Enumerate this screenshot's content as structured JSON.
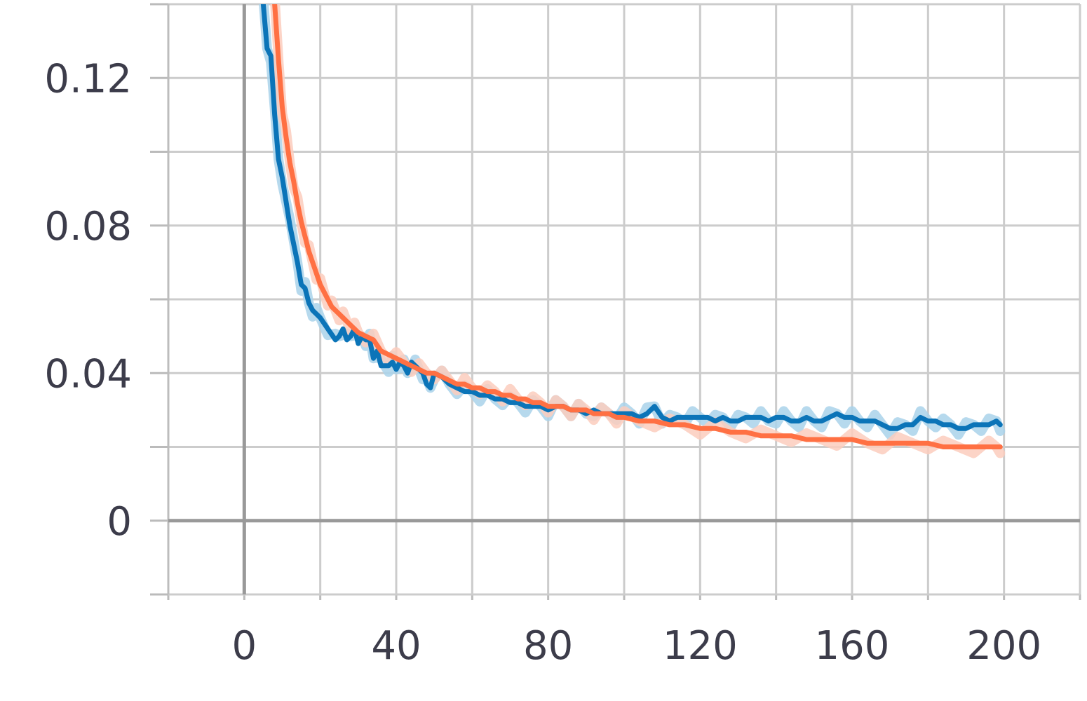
{
  "chart_data": {
    "type": "line",
    "title": "",
    "xlabel": "",
    "ylabel": "",
    "xlim": [
      -20,
      220
    ],
    "ylim": [
      -0.02,
      0.14
    ],
    "x_ticks": [
      0,
      40,
      80,
      120,
      160,
      200
    ],
    "x_tick_labels": [
      "0",
      "40",
      "80",
      "120",
      "160",
      "200"
    ],
    "y_ticks": [
      0,
      0.04,
      0.08,
      0.12
    ],
    "y_tick_labels": [
      "0",
      "0.04",
      "0.08",
      "0.12"
    ],
    "grid": true,
    "legend": "none",
    "series": [
      {
        "color": "#0b74b8",
        "raw_color": "#a9d2ea",
        "x": [
          5,
          6,
          7,
          8,
          9,
          10,
          12,
          14,
          15,
          16,
          17,
          18,
          19,
          20,
          22,
          24,
          25,
          26,
          27,
          28,
          29,
          30,
          31,
          32,
          33,
          34,
          35,
          36,
          37,
          38,
          39,
          40,
          41,
          42,
          43,
          44,
          45,
          46,
          47,
          48,
          49,
          50,
          52,
          54,
          56,
          58,
          60,
          62,
          64,
          66,
          68,
          70,
          72,
          74,
          76,
          78,
          80,
          82,
          84,
          86,
          88,
          90,
          92,
          94,
          96,
          98,
          100,
          102,
          104,
          106,
          108,
          110,
          112,
          114,
          116,
          118,
          120,
          122,
          124,
          126,
          128,
          130,
          132,
          134,
          136,
          138,
          140,
          142,
          144,
          146,
          148,
          150,
          152,
          154,
          156,
          158,
          160,
          162,
          164,
          166,
          168,
          170,
          172,
          174,
          176,
          178,
          180,
          182,
          184,
          186,
          188,
          190,
          192,
          194,
          196,
          198,
          199
        ],
        "y": [
          0.14,
          0.128,
          0.126,
          0.11,
          0.098,
          0.093,
          0.08,
          0.07,
          0.064,
          0.063,
          0.059,
          0.057,
          0.056,
          0.055,
          0.052,
          0.049,
          0.05,
          0.052,
          0.049,
          0.05,
          0.052,
          0.048,
          0.05,
          0.049,
          0.049,
          0.044,
          0.046,
          0.042,
          0.042,
          0.042,
          0.043,
          0.041,
          0.043,
          0.042,
          0.04,
          0.043,
          0.042,
          0.041,
          0.04,
          0.037,
          0.036,
          0.04,
          0.039,
          0.037,
          0.036,
          0.035,
          0.035,
          0.034,
          0.034,
          0.033,
          0.033,
          0.032,
          0.032,
          0.031,
          0.031,
          0.031,
          0.03,
          0.031,
          0.031,
          0.03,
          0.03,
          0.029,
          0.03,
          0.029,
          0.029,
          0.029,
          0.029,
          0.029,
          0.028,
          0.029,
          0.031,
          0.028,
          0.027,
          0.028,
          0.028,
          0.028,
          0.028,
          0.028,
          0.027,
          0.028,
          0.027,
          0.027,
          0.028,
          0.028,
          0.028,
          0.027,
          0.028,
          0.028,
          0.027,
          0.027,
          0.028,
          0.027,
          0.027,
          0.028,
          0.029,
          0.028,
          0.028,
          0.027,
          0.027,
          0.027,
          0.026,
          0.025,
          0.025,
          0.026,
          0.026,
          0.028,
          0.027,
          0.027,
          0.026,
          0.026,
          0.025,
          0.025,
          0.026,
          0.026,
          0.026,
          0.027,
          0.026
        ]
      },
      {
        "color": "#ff7043",
        "raw_color": "#fbcdbd",
        "x": [
          8,
          9,
          10,
          11,
          12,
          13,
          14,
          15,
          16,
          17,
          18,
          19,
          20,
          21,
          22,
          23,
          24,
          25,
          26,
          27,
          28,
          29,
          30,
          32,
          34,
          36,
          38,
          40,
          42,
          44,
          46,
          48,
          50,
          52,
          54,
          56,
          58,
          60,
          62,
          64,
          66,
          68,
          70,
          72,
          74,
          76,
          78,
          80,
          82,
          84,
          86,
          88,
          90,
          92,
          94,
          96,
          98,
          100,
          104,
          108,
          112,
          116,
          120,
          124,
          128,
          132,
          136,
          140,
          144,
          148,
          152,
          156,
          160,
          164,
          168,
          172,
          176,
          180,
          184,
          188,
          192,
          196,
          198,
          199
        ],
        "y": [
          0.14,
          0.125,
          0.112,
          0.104,
          0.097,
          0.092,
          0.086,
          0.081,
          0.077,
          0.073,
          0.07,
          0.067,
          0.064,
          0.062,
          0.06,
          0.058,
          0.057,
          0.056,
          0.055,
          0.054,
          0.053,
          0.052,
          0.051,
          0.05,
          0.049,
          0.046,
          0.045,
          0.044,
          0.043,
          0.042,
          0.041,
          0.04,
          0.04,
          0.039,
          0.038,
          0.037,
          0.037,
          0.036,
          0.036,
          0.035,
          0.035,
          0.034,
          0.034,
          0.033,
          0.033,
          0.032,
          0.032,
          0.031,
          0.031,
          0.031,
          0.03,
          0.03,
          0.03,
          0.029,
          0.029,
          0.029,
          0.028,
          0.028,
          0.027,
          0.027,
          0.026,
          0.026,
          0.025,
          0.025,
          0.024,
          0.024,
          0.023,
          0.023,
          0.023,
          0.022,
          0.022,
          0.022,
          0.022,
          0.021,
          0.021,
          0.021,
          0.021,
          0.021,
          0.02,
          0.02,
          0.02,
          0.02,
          0.02,
          0.02
        ]
      }
    ]
  }
}
